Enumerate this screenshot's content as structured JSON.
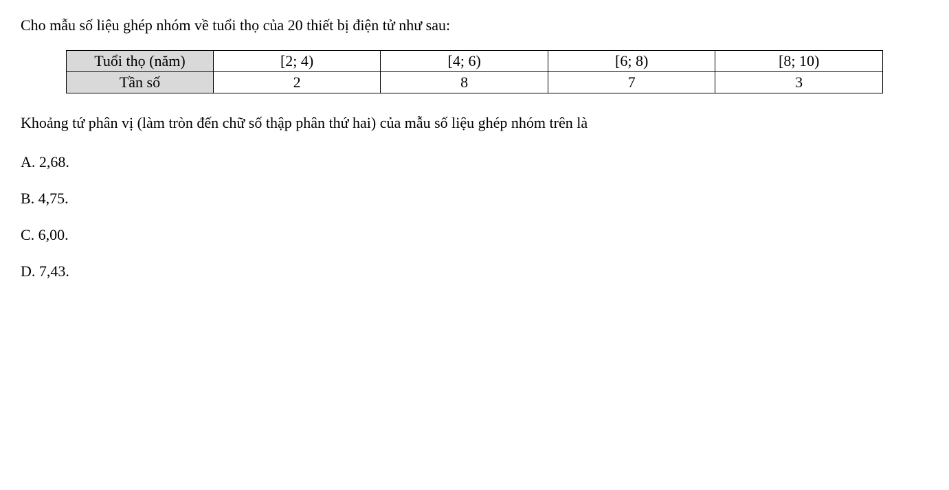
{
  "intro": "Cho mẫu số liệu ghép nhóm về tuổi thọ của 20 thiết bị điện tử như sau:",
  "table": {
    "row1_header": "Tuổi thọ (năm)",
    "row1_cells": [
      "[2; 4)",
      "[4; 6)",
      "[6; 8)",
      "[8; 10)"
    ],
    "row2_header": "Tần số",
    "row2_cells": [
      "2",
      "8",
      "7",
      "3"
    ]
  },
  "question": "Khoảng tứ phân vị (làm tròn đến chữ số thập phân thứ hai) của mẫu số liệu ghép nhóm trên là",
  "options": {
    "a": "A. 2,68.",
    "b": "B. 4,75.",
    "c": "C. 6,00.",
    "d": "D. 7,43."
  },
  "styles": {
    "font_family": "Times New Roman",
    "font_size_pt": 22,
    "text_color": "#000000",
    "background_color": "#ffffff",
    "table_header_bg": "#d9d9d9",
    "table_border_color": "#000000"
  }
}
